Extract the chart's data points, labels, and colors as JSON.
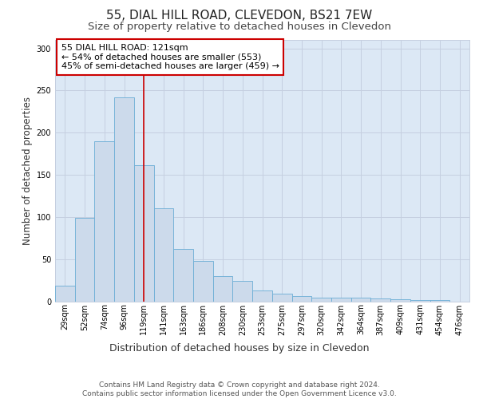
{
  "title_line1": "55, DIAL HILL ROAD, CLEVEDON, BS21 7EW",
  "title_line2": "Size of property relative to detached houses in Clevedon",
  "xlabel": "Distribution of detached houses by size in Clevedon",
  "ylabel": "Number of detached properties",
  "footer_line1": "Contains HM Land Registry data © Crown copyright and database right 2024.",
  "footer_line2": "Contains public sector information licensed under the Open Government Licence v3.0.",
  "annotation_line1": "55 DIAL HILL ROAD: 121sqm",
  "annotation_line2": "← 54% of detached houses are smaller (553)",
  "annotation_line3": "45% of semi-detached houses are larger (459) →",
  "bar_values": [
    18,
    99,
    190,
    242,
    161,
    110,
    62,
    48,
    30,
    24,
    13,
    9,
    6,
    4,
    4,
    4,
    3,
    2,
    1,
    1,
    0
  ],
  "bar_labels": [
    "29sqm",
    "52sqm",
    "74sqm",
    "96sqm",
    "119sqm",
    "141sqm",
    "163sqm",
    "186sqm",
    "208sqm",
    "230sqm",
    "253sqm",
    "275sqm",
    "297sqm",
    "320sqm",
    "342sqm",
    "364sqm",
    "387sqm",
    "409sqm",
    "431sqm",
    "454sqm",
    "476sqm"
  ],
  "bar_color": "#ccdaeb",
  "bar_edge_color": "#6aadd5",
  "grid_color": "#c5cfe0",
  "background_color": "#dce8f5",
  "annotation_box_edge": "#cc0000",
  "vline_color": "#cc0000",
  "vline_x": 4.0,
  "ylim": [
    0,
    310
  ],
  "yticks": [
    0,
    50,
    100,
    150,
    200,
    250,
    300
  ],
  "title_fontsize": 11,
  "subtitle_fontsize": 9.5,
  "ylabel_fontsize": 8.5,
  "xlabel_fontsize": 9,
  "tick_fontsize": 7,
  "annotation_fontsize": 8,
  "footer_fontsize": 6.5
}
